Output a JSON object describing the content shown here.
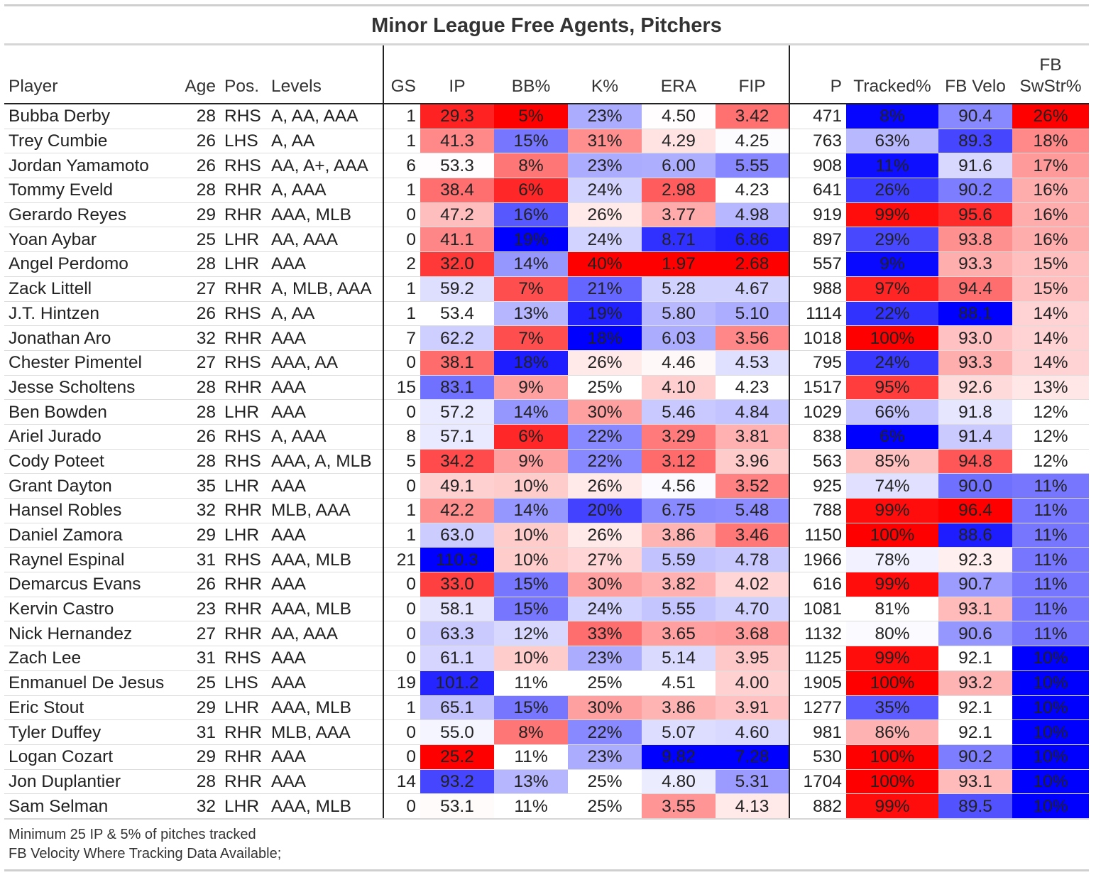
{
  "chart_data": {
    "type": "table",
    "title": "Minor League Free Agents, Pitchers",
    "columns": [
      {
        "key": "player",
        "label": "Player"
      },
      {
        "key": "age",
        "label": "Age"
      },
      {
        "key": "pos",
        "label": "Pos."
      },
      {
        "key": "levels",
        "label": "Levels"
      },
      {
        "key": "gs",
        "label": "GS"
      },
      {
        "key": "ip",
        "label": "IP"
      },
      {
        "key": "bb",
        "label": "BB%"
      },
      {
        "key": "k",
        "label": "K%"
      },
      {
        "key": "era",
        "label": "ERA"
      },
      {
        "key": "fip",
        "label": "FIP"
      },
      {
        "key": "p",
        "label": "P"
      },
      {
        "key": "tracked",
        "label": "Tracked%"
      },
      {
        "key": "fbvelo",
        "label": "FB Velo"
      },
      {
        "key": "fbswstr",
        "label": "FB SwStr%",
        "label_line1": "FB",
        "label_line2": "SwStr%"
      }
    ],
    "colors": {
      "low": "#0000ff",
      "mid": "#ffffff",
      "high": "#ff0000"
    },
    "rows": [
      {
        "player": "Bubba Derby",
        "age": 28,
        "pos": "RHS",
        "levels": "A, AA, AAA",
        "gs": 1,
        "ip": "29.3",
        "bb": "5%",
        "k": "23%",
        "era": "4.50",
        "fip": "3.42",
        "p": 471,
        "tracked": "8%",
        "fbvelo": "90.4",
        "fbswstr": "26%"
      },
      {
        "player": "Trey Cumbie",
        "age": 26,
        "pos": "LHS",
        "levels": "A, AA",
        "gs": 1,
        "ip": "41.3",
        "bb": "15%",
        "k": "31%",
        "era": "4.29",
        "fip": "4.25",
        "p": 763,
        "tracked": "63%",
        "fbvelo": "89.3",
        "fbswstr": "18%"
      },
      {
        "player": "Jordan Yamamoto",
        "age": 26,
        "pos": "RHS",
        "levels": "AA, A+, AAA",
        "gs": 6,
        "ip": "53.3",
        "bb": "8%",
        "k": "23%",
        "era": "6.00",
        "fip": "5.55",
        "p": 908,
        "tracked": "11%",
        "fbvelo": "91.6",
        "fbswstr": "17%"
      },
      {
        "player": "Tommy Eveld",
        "age": 28,
        "pos": "RHR",
        "levels": "A, AAA",
        "gs": 1,
        "ip": "38.4",
        "bb": "6%",
        "k": "24%",
        "era": "2.98",
        "fip": "4.23",
        "p": 641,
        "tracked": "26%",
        "fbvelo": "90.2",
        "fbswstr": "16%"
      },
      {
        "player": "Gerardo Reyes",
        "age": 29,
        "pos": "RHR",
        "levels": "AAA, MLB",
        "gs": 0,
        "ip": "47.2",
        "bb": "16%",
        "k": "26%",
        "era": "3.77",
        "fip": "4.98",
        "p": 919,
        "tracked": "99%",
        "fbvelo": "95.6",
        "fbswstr": "16%"
      },
      {
        "player": "Yoan Aybar",
        "age": 25,
        "pos": "LHR",
        "levels": "AA, AAA",
        "gs": 0,
        "ip": "41.1",
        "bb": "19%",
        "k": "24%",
        "era": "8.71",
        "fip": "6.86",
        "p": 897,
        "tracked": "29%",
        "fbvelo": "93.8",
        "fbswstr": "16%"
      },
      {
        "player": "Angel Perdomo",
        "age": 28,
        "pos": "LHR",
        "levels": "AAA",
        "gs": 2,
        "ip": "32.0",
        "bb": "14%",
        "k": "40%",
        "era": "1.97",
        "fip": "2.68",
        "p": 557,
        "tracked": "9%",
        "fbvelo": "93.3",
        "fbswstr": "15%"
      },
      {
        "player": "Zack Littell",
        "age": 27,
        "pos": "RHR",
        "levels": "A, MLB, AAA",
        "gs": 1,
        "ip": "59.2",
        "bb": "7%",
        "k": "21%",
        "era": "5.28",
        "fip": "4.67",
        "p": 988,
        "tracked": "97%",
        "fbvelo": "94.4",
        "fbswstr": "15%"
      },
      {
        "player": "J.T. Hintzen",
        "age": 26,
        "pos": "RHS",
        "levels": "A, AA",
        "gs": 1,
        "ip": "53.4",
        "bb": "13%",
        "k": "19%",
        "era": "5.80",
        "fip": "5.10",
        "p": 1114,
        "tracked": "22%",
        "fbvelo": "88.1",
        "fbswstr": "14%"
      },
      {
        "player": "Jonathan Aro",
        "age": 32,
        "pos": "RHR",
        "levels": "AAA",
        "gs": 7,
        "ip": "62.2",
        "bb": "7%",
        "k": "18%",
        "era": "6.03",
        "fip": "3.56",
        "p": 1018,
        "tracked": "100%",
        "fbvelo": "93.0",
        "fbswstr": "14%"
      },
      {
        "player": "Chester Pimentel",
        "age": 27,
        "pos": "RHS",
        "levels": "AAA, AA",
        "gs": 0,
        "ip": "38.1",
        "bb": "18%",
        "k": "26%",
        "era": "4.46",
        "fip": "4.53",
        "p": 795,
        "tracked": "24%",
        "fbvelo": "93.3",
        "fbswstr": "14%"
      },
      {
        "player": "Jesse Scholtens",
        "age": 28,
        "pos": "RHR",
        "levels": "AAA",
        "gs": 15,
        "ip": "83.1",
        "bb": "9%",
        "k": "25%",
        "era": "4.10",
        "fip": "4.23",
        "p": 1517,
        "tracked": "95%",
        "fbvelo": "92.6",
        "fbswstr": "13%"
      },
      {
        "player": "Ben Bowden",
        "age": 28,
        "pos": "LHR",
        "levels": "AAA",
        "gs": 0,
        "ip": "57.2",
        "bb": "14%",
        "k": "30%",
        "era": "5.46",
        "fip": "4.84",
        "p": 1029,
        "tracked": "66%",
        "fbvelo": "91.8",
        "fbswstr": "12%"
      },
      {
        "player": "Ariel Jurado",
        "age": 26,
        "pos": "RHS",
        "levels": "A, AAA",
        "gs": 8,
        "ip": "57.1",
        "bb": "6%",
        "k": "22%",
        "era": "3.29",
        "fip": "3.81",
        "p": 838,
        "tracked": "6%",
        "fbvelo": "91.4",
        "fbswstr": "12%"
      },
      {
        "player": "Cody Poteet",
        "age": 28,
        "pos": "RHS",
        "levels": "AAA, A, MLB",
        "gs": 5,
        "ip": "34.2",
        "bb": "9%",
        "k": "22%",
        "era": "3.12",
        "fip": "3.96",
        "p": 563,
        "tracked": "85%",
        "fbvelo": "94.8",
        "fbswstr": "12%"
      },
      {
        "player": "Grant Dayton",
        "age": 35,
        "pos": "LHR",
        "levels": "AAA",
        "gs": 0,
        "ip": "49.1",
        "bb": "10%",
        "k": "26%",
        "era": "4.56",
        "fip": "3.52",
        "p": 925,
        "tracked": "74%",
        "fbvelo": "90.0",
        "fbswstr": "11%"
      },
      {
        "player": "Hansel Robles",
        "age": 32,
        "pos": "RHR",
        "levels": "MLB, AAA",
        "gs": 1,
        "ip": "42.2",
        "bb": "14%",
        "k": "20%",
        "era": "6.75",
        "fip": "5.48",
        "p": 788,
        "tracked": "99%",
        "fbvelo": "96.4",
        "fbswstr": "11%"
      },
      {
        "player": "Daniel Zamora",
        "age": 29,
        "pos": "LHR",
        "levels": "AAA",
        "gs": 1,
        "ip": "63.0",
        "bb": "10%",
        "k": "26%",
        "era": "3.86",
        "fip": "3.46",
        "p": 1150,
        "tracked": "100%",
        "fbvelo": "88.6",
        "fbswstr": "11%"
      },
      {
        "player": "Raynel Espinal",
        "age": 31,
        "pos": "RHS",
        "levels": "AAA, MLB",
        "gs": 21,
        "ip": "110.3",
        "bb": "10%",
        "k": "27%",
        "era": "5.59",
        "fip": "4.78",
        "p": 1966,
        "tracked": "78%",
        "fbvelo": "92.3",
        "fbswstr": "11%"
      },
      {
        "player": "Demarcus Evans",
        "age": 26,
        "pos": "RHR",
        "levels": "AAA",
        "gs": 0,
        "ip": "33.0",
        "bb": "15%",
        "k": "30%",
        "era": "3.82",
        "fip": "4.02",
        "p": 616,
        "tracked": "99%",
        "fbvelo": "90.7",
        "fbswstr": "11%"
      },
      {
        "player": "Kervin Castro",
        "age": 23,
        "pos": "RHR",
        "levels": "AAA, MLB",
        "gs": 0,
        "ip": "58.1",
        "bb": "15%",
        "k": "24%",
        "era": "5.55",
        "fip": "4.70",
        "p": 1081,
        "tracked": "81%",
        "fbvelo": "93.1",
        "fbswstr": "11%"
      },
      {
        "player": "Nick Hernandez",
        "age": 27,
        "pos": "RHR",
        "levels": "AA, AAA",
        "gs": 0,
        "ip": "63.3",
        "bb": "12%",
        "k": "33%",
        "era": "3.65",
        "fip": "3.68",
        "p": 1132,
        "tracked": "80%",
        "fbvelo": "90.6",
        "fbswstr": "11%"
      },
      {
        "player": "Zach Lee",
        "age": 31,
        "pos": "RHS",
        "levels": "AAA",
        "gs": 0,
        "ip": "61.1",
        "bb": "10%",
        "k": "23%",
        "era": "5.14",
        "fip": "3.95",
        "p": 1125,
        "tracked": "99%",
        "fbvelo": "92.1",
        "fbswstr": "10%"
      },
      {
        "player": "Enmanuel De Jesus",
        "age": 25,
        "pos": "LHS",
        "levels": "AAA",
        "gs": 19,
        "ip": "101.2",
        "bb": "11%",
        "k": "25%",
        "era": "4.51",
        "fip": "4.00",
        "p": 1905,
        "tracked": "100%",
        "fbvelo": "93.2",
        "fbswstr": "10%"
      },
      {
        "player": "Eric Stout",
        "age": 29,
        "pos": "LHR",
        "levels": "AAA, MLB",
        "gs": 1,
        "ip": "65.1",
        "bb": "15%",
        "k": "30%",
        "era": "3.86",
        "fip": "3.91",
        "p": 1277,
        "tracked": "35%",
        "fbvelo": "92.1",
        "fbswstr": "10%"
      },
      {
        "player": "Tyler Duffey",
        "age": 31,
        "pos": "RHR",
        "levels": "MLB, AAA",
        "gs": 0,
        "ip": "55.0",
        "bb": "8%",
        "k": "22%",
        "era": "5.07",
        "fip": "4.60",
        "p": 981,
        "tracked": "86%",
        "fbvelo": "92.1",
        "fbswstr": "10%"
      },
      {
        "player": "Logan Cozart",
        "age": 29,
        "pos": "RHR",
        "levels": "AAA",
        "gs": 0,
        "ip": "25.2",
        "bb": "11%",
        "k": "23%",
        "era": "9.82",
        "fip": "7.28",
        "p": 530,
        "tracked": "100%",
        "fbvelo": "90.2",
        "fbswstr": "10%"
      },
      {
        "player": "Jon Duplantier",
        "age": 28,
        "pos": "RHR",
        "levels": "AAA",
        "gs": 14,
        "ip": "93.2",
        "bb": "13%",
        "k": "25%",
        "era": "4.80",
        "fip": "5.31",
        "p": 1704,
        "tracked": "100%",
        "fbvelo": "93.1",
        "fbswstr": "10%"
      },
      {
        "player": "Sam Selman",
        "age": 32,
        "pos": "LHR",
        "levels": "AAA, MLB",
        "gs": 0,
        "ip": "53.1",
        "bb": "11%",
        "k": "25%",
        "era": "3.55",
        "fip": "4.13",
        "p": 882,
        "tracked": "99%",
        "fbvelo": "89.5",
        "fbswstr": "10%"
      }
    ],
    "notes": [
      "Minimum 25 IP & 5% of pitches tracked",
      "FB Velocity Where Tracking Data Available;"
    ]
  }
}
